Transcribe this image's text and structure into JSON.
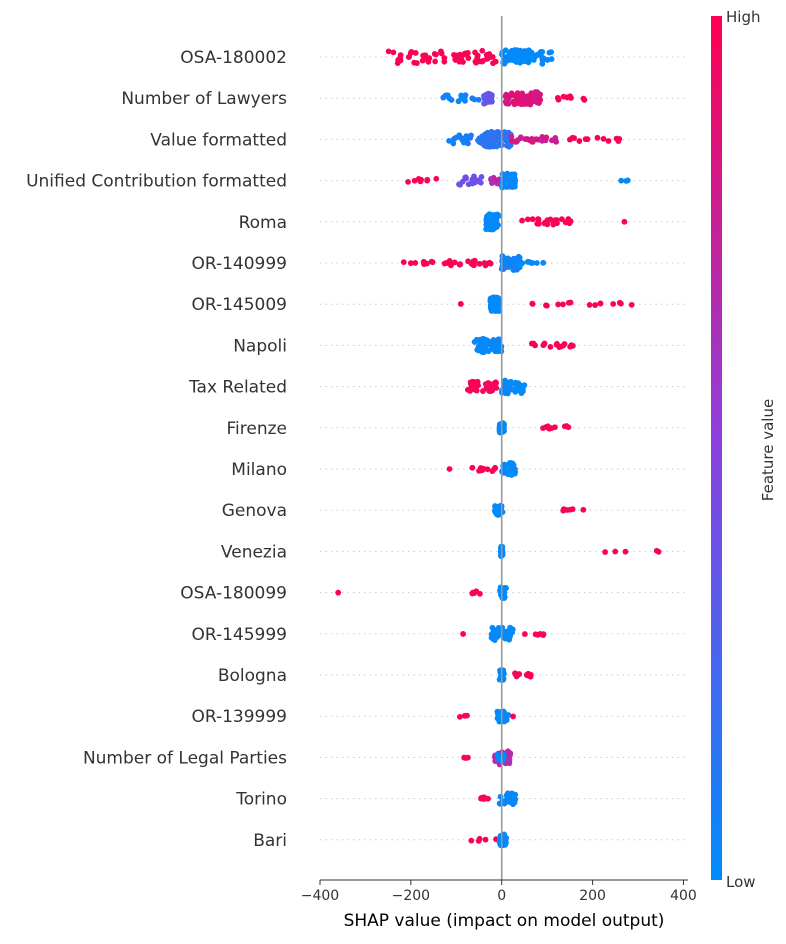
{
  "chart_data": {
    "type": "scatter",
    "xlabel": "SHAP value (impact on model output)",
    "xlim": [
      -400,
      410
    ],
    "xticks": [
      -400,
      -200,
      0,
      200,
      400
    ],
    "colorbar": {
      "label": "Feature value",
      "high": "High",
      "low": "Low",
      "low_color": "#008bfb",
      "mid_color": "#8a42e0",
      "high_color": "#ff0051"
    },
    "features": [
      {
        "name": "OSA-180002",
        "clusters": [
          {
            "from": -250,
            "to": -10,
            "count": 60,
            "value": 1.0,
            "spread": 0.45
          },
          {
            "from": 0,
            "to": 110,
            "count": 70,
            "value": 0.0,
            "spread": 0.5
          }
        ]
      },
      {
        "name": "Number of Lawyers",
        "clusters": [
          {
            "from": -130,
            "to": -20,
            "count": 18,
            "value": 0.05,
            "spread": 0.25
          },
          {
            "from": -40,
            "to": -20,
            "count": 20,
            "value": 0.35,
            "spread": 0.4
          },
          {
            "from": 5,
            "to": 85,
            "count": 80,
            "value": 0.85,
            "spread": 0.45
          },
          {
            "from": 110,
            "to": 190,
            "count": 8,
            "value": 1.0,
            "spread": 0.15
          }
        ]
      },
      {
        "name": "Value formatted",
        "clusters": [
          {
            "from": -120,
            "to": -10,
            "count": 30,
            "value": 0.1,
            "spread": 0.3
          },
          {
            "from": -40,
            "to": 20,
            "count": 60,
            "value": 0.15,
            "spread": 0.55
          },
          {
            "from": 20,
            "to": 130,
            "count": 25,
            "value": 0.8,
            "spread": 0.2
          },
          {
            "from": 150,
            "to": 265,
            "count": 12,
            "value": 1.0,
            "spread": 0.12
          }
        ]
      },
      {
        "name": "Unified Contribution formatted",
        "clusters": [
          {
            "from": -210,
            "to": -130,
            "count": 8,
            "value": 1.0,
            "spread": 0.15
          },
          {
            "from": -100,
            "to": -40,
            "count": 20,
            "value": 0.4,
            "spread": 0.3
          },
          {
            "from": -30,
            "to": 0,
            "count": 12,
            "value": 0.7,
            "spread": 0.25
          },
          {
            "from": 0,
            "to": 30,
            "count": 45,
            "value": 0.0,
            "spread": 0.5
          },
          {
            "from": 240,
            "to": 350,
            "count": 3,
            "value": 0.0,
            "spread": 0.05
          }
        ]
      },
      {
        "name": "Roma",
        "clusters": [
          {
            "from": -35,
            "to": -5,
            "count": 60,
            "value": 0.0,
            "spread": 0.55
          },
          {
            "from": 40,
            "to": 160,
            "count": 25,
            "value": 1.0,
            "spread": 0.2
          },
          {
            "from": 270,
            "to": 270,
            "count": 1,
            "value": 1.0,
            "spread": 0.02
          }
        ]
      },
      {
        "name": "OR-140999",
        "clusters": [
          {
            "from": -220,
            "to": -140,
            "count": 8,
            "value": 1.0,
            "spread": 0.1
          },
          {
            "from": -130,
            "to": -20,
            "count": 22,
            "value": 1.0,
            "spread": 0.2
          },
          {
            "from": 0,
            "to": 40,
            "count": 60,
            "value": 0.05,
            "spread": 0.5
          },
          {
            "from": 20,
            "to": 95,
            "count": 8,
            "value": 0.0,
            "spread": 0.1
          }
        ]
      },
      {
        "name": "OR-145009",
        "clusters": [
          {
            "from": -90,
            "to": -90,
            "count": 1,
            "value": 1.0,
            "spread": 0.02
          },
          {
            "from": -25,
            "to": -5,
            "count": 60,
            "value": 0.0,
            "spread": 0.5
          },
          {
            "from": 65,
            "to": 305,
            "count": 16,
            "value": 1.0,
            "spread": 0.12
          }
        ]
      },
      {
        "name": "Napoli",
        "clusters": [
          {
            "from": -60,
            "to": 0,
            "count": 60,
            "value": 0.0,
            "spread": 0.5
          },
          {
            "from": 65,
            "to": 160,
            "count": 15,
            "value": 1.0,
            "spread": 0.15
          }
        ]
      },
      {
        "name": "Tax Related",
        "clusters": [
          {
            "from": -75,
            "to": -10,
            "count": 35,
            "value": 1.0,
            "spread": 0.35
          },
          {
            "from": 0,
            "to": 50,
            "count": 40,
            "value": 0.0,
            "spread": 0.5
          }
        ]
      },
      {
        "name": "Firenze",
        "clusters": [
          {
            "from": -5,
            "to": 5,
            "count": 40,
            "value": 0.0,
            "spread": 0.35
          },
          {
            "from": 90,
            "to": 150,
            "count": 10,
            "value": 1.0,
            "spread": 0.15
          }
        ]
      },
      {
        "name": "Milano",
        "clusters": [
          {
            "from": -115,
            "to": -115,
            "count": 1,
            "value": 1.0,
            "spread": 0.02
          },
          {
            "from": -70,
            "to": -10,
            "count": 14,
            "value": 1.0,
            "spread": 0.15
          },
          {
            "from": 0,
            "to": 30,
            "count": 40,
            "value": 0.0,
            "spread": 0.45
          }
        ]
      },
      {
        "name": "Genova",
        "clusters": [
          {
            "from": -15,
            "to": 5,
            "count": 30,
            "value": 0.0,
            "spread": 0.35
          },
          {
            "from": 130,
            "to": 185,
            "count": 6,
            "value": 1.0,
            "spread": 0.1
          }
        ]
      },
      {
        "name": "Venezia",
        "clusters": [
          {
            "from": -2,
            "to": 2,
            "count": 40,
            "value": 0.0,
            "spread": 0.35
          },
          {
            "from": 200,
            "to": 370,
            "count": 5,
            "value": 1.0,
            "spread": 0.05
          }
        ]
      },
      {
        "name": "OSA-180099",
        "clusters": [
          {
            "from": -360,
            "to": -360,
            "count": 1,
            "value": 1.0,
            "spread": 0.02
          },
          {
            "from": -65,
            "to": -15,
            "count": 6,
            "value": 1.0,
            "spread": 0.1
          },
          {
            "from": -5,
            "to": 10,
            "count": 30,
            "value": 0.0,
            "spread": 0.4
          }
        ]
      },
      {
        "name": "OR-145999",
        "clusters": [
          {
            "from": -85,
            "to": -85,
            "count": 1,
            "value": 1.0,
            "spread": 0.02
          },
          {
            "from": -25,
            "to": 25,
            "count": 45,
            "value": 0.0,
            "spread": 0.45
          },
          {
            "from": 20,
            "to": 95,
            "count": 6,
            "value": 1.0,
            "spread": 0.1
          }
        ]
      },
      {
        "name": "Bologna",
        "clusters": [
          {
            "from": -5,
            "to": 5,
            "count": 30,
            "value": 0.0,
            "spread": 0.35
          },
          {
            "from": 20,
            "to": 65,
            "count": 12,
            "value": 1.0,
            "spread": 0.15
          }
        ]
      },
      {
        "name": "OR-139999",
        "clusters": [
          {
            "from": -95,
            "to": -60,
            "count": 3,
            "value": 1.0,
            "spread": 0.05
          },
          {
            "from": -10,
            "to": 15,
            "count": 30,
            "value": 0.0,
            "spread": 0.4
          },
          {
            "from": 25,
            "to": 25,
            "count": 1,
            "value": 1.0,
            "spread": 0.02
          }
        ]
      },
      {
        "name": "Number of Legal Parties",
        "clusters": [
          {
            "from": -100,
            "to": -70,
            "count": 3,
            "value": 1.0,
            "spread": 0.05
          },
          {
            "from": -15,
            "to": 20,
            "count": 40,
            "value": 0.7,
            "spread": 0.5
          },
          {
            "from": -10,
            "to": 5,
            "count": 15,
            "value": 0.0,
            "spread": 0.35
          }
        ]
      },
      {
        "name": "Torino",
        "clusters": [
          {
            "from": -50,
            "to": -25,
            "count": 6,
            "value": 1.0,
            "spread": 0.1
          },
          {
            "from": -5,
            "to": 30,
            "count": 30,
            "value": 0.0,
            "spread": 0.4
          }
        ]
      },
      {
        "name": "Bari",
        "clusters": [
          {
            "from": -70,
            "to": -10,
            "count": 5,
            "value": 1.0,
            "spread": 0.08
          },
          {
            "from": -5,
            "to": 10,
            "count": 30,
            "value": 0.0,
            "spread": 0.4
          }
        ]
      }
    ]
  }
}
